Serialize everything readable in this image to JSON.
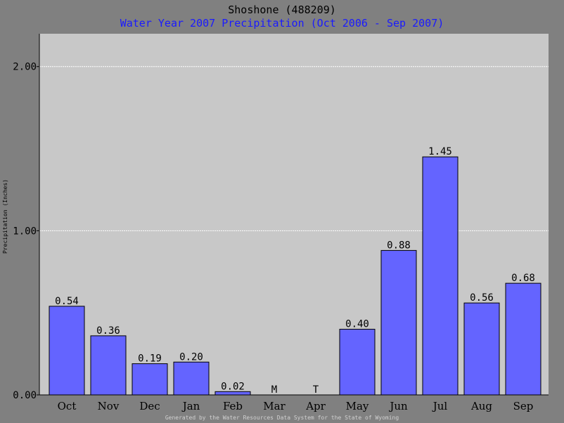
{
  "chart_data": {
    "type": "bar",
    "title": "Shoshone (488209)",
    "subtitle": "Water Year 2007 Precipitation (Oct 2006 - Sep 2007)",
    "xlabel": "",
    "ylabel": "Precipitation (Inches)",
    "ylim": [
      0,
      2.2
    ],
    "yticks": [
      "0.00",
      "1.00",
      "2.00"
    ],
    "grid": true,
    "categories": [
      "Oct",
      "Nov",
      "Dec",
      "Jan",
      "Feb",
      "Mar",
      "Apr",
      "May",
      "Jun",
      "Jul",
      "Aug",
      "Sep"
    ],
    "values": [
      0.54,
      0.36,
      0.19,
      0.2,
      0.02,
      0,
      0,
      0.4,
      0.88,
      1.45,
      0.56,
      0.68
    ],
    "value_labels": [
      "0.54",
      "0.36",
      "0.19",
      "0.20",
      "0.02",
      "M",
      "T",
      "0.40",
      "0.88",
      "1.45",
      "0.56",
      "0.68"
    ],
    "missing_categories": [
      "Mar"
    ]
  },
  "footer": "Generated by the Water Resources Data System for the State of Wyoming",
  "colors": {
    "background": "#808080",
    "plot_area": "#c8c8c8",
    "bar_fill": "#6464ff",
    "subtitle": "#1a1aff",
    "missing": "#cc0000",
    "gridline": "#ffffff"
  }
}
